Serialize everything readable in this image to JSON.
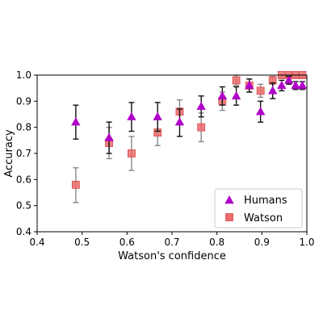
{
  "chart_data": {
    "type": "scatter",
    "xlabel": "Watson's confidence",
    "ylabel": "Accuracy",
    "xlim": [
      0.4,
      1.0
    ],
    "ylim": [
      0.4,
      1.0
    ],
    "xticks": [
      "0.4",
      "0.5",
      "0.6",
      "0.7",
      "0.8",
      "0.9",
      "1.0"
    ],
    "yticks": [
      "0.4",
      "0.5",
      "0.6",
      "0.7",
      "0.8",
      "0.9",
      "1.0"
    ],
    "grid": false,
    "legend_position": "bottom-right",
    "series": [
      {
        "name": "Humans",
        "marker": "triangle",
        "color": "#b000c8",
        "errcolor": "#111111",
        "points": [
          {
            "x": 0.486,
            "y": 0.82,
            "lo": 0.755,
            "hi": 0.885
          },
          {
            "x": 0.56,
            "y": 0.76,
            "lo": 0.7,
            "hi": 0.82
          },
          {
            "x": 0.61,
            "y": 0.84,
            "lo": 0.785,
            "hi": 0.895
          },
          {
            "x": 0.668,
            "y": 0.84,
            "lo": 0.785,
            "hi": 0.895
          },
          {
            "x": 0.717,
            "y": 0.82,
            "lo": 0.765,
            "hi": 0.87
          },
          {
            "x": 0.765,
            "y": 0.88,
            "lo": 0.84,
            "hi": 0.92
          },
          {
            "x": 0.812,
            "y": 0.92,
            "lo": 0.885,
            "hi": 0.955
          },
          {
            "x": 0.843,
            "y": 0.92,
            "lo": 0.885,
            "hi": 0.955
          },
          {
            "x": 0.872,
            "y": 0.96,
            "lo": 0.935,
            "hi": 0.985
          },
          {
            "x": 0.897,
            "y": 0.86,
            "lo": 0.82,
            "hi": 0.9
          },
          {
            "x": 0.924,
            "y": 0.94,
            "lo": 0.91,
            "hi": 0.97
          },
          {
            "x": 0.944,
            "y": 0.96,
            "lo": 0.94,
            "hi": 0.98
          },
          {
            "x": 0.96,
            "y": 0.98,
            "lo": 0.965,
            "hi": 0.995
          },
          {
            "x": 0.975,
            "y": 0.96,
            "lo": 0.945,
            "hi": 0.975
          },
          {
            "x": 0.99,
            "y": 0.96,
            "lo": 0.945,
            "hi": 0.975
          }
        ]
      },
      {
        "name": "Watson",
        "marker": "square",
        "color": "#ec6a6a",
        "errcolor": "#888888",
        "points": [
          {
            "x": 0.486,
            "y": 0.58,
            "lo": 0.512,
            "hi": 0.645
          },
          {
            "x": 0.56,
            "y": 0.74,
            "lo": 0.68,
            "hi": 0.8
          },
          {
            "x": 0.61,
            "y": 0.7,
            "lo": 0.635,
            "hi": 0.765
          },
          {
            "x": 0.668,
            "y": 0.78,
            "lo": 0.73,
            "hi": 0.83
          },
          {
            "x": 0.717,
            "y": 0.86,
            "lo": 0.815,
            "hi": 0.905
          },
          {
            "x": 0.765,
            "y": 0.8,
            "lo": 0.745,
            "hi": 0.855
          },
          {
            "x": 0.812,
            "y": 0.9,
            "lo": 0.865,
            "hi": 0.935
          },
          {
            "x": 0.843,
            "y": 0.98,
            "lo": 0.96,
            "hi": 1.0
          },
          {
            "x": 0.872,
            "y": 0.96,
            "lo": 0.935,
            "hi": 0.985
          },
          {
            "x": 0.897,
            "y": 0.94,
            "lo": 0.915,
            "hi": 0.965
          },
          {
            "x": 0.924,
            "y": 0.98,
            "lo": 0.965,
            "hi": 0.995
          },
          {
            "x": 0.944,
            "y": 1.0,
            "lo": 0.99,
            "hi": 1.0
          },
          {
            "x": 0.96,
            "y": 1.0,
            "lo": 0.99,
            "hi": 1.0
          },
          {
            "x": 0.975,
            "y": 1.0,
            "lo": 0.99,
            "hi": 1.0
          },
          {
            "x": 0.99,
            "y": 1.0,
            "lo": 0.99,
            "hi": 1.0
          }
        ]
      }
    ]
  }
}
